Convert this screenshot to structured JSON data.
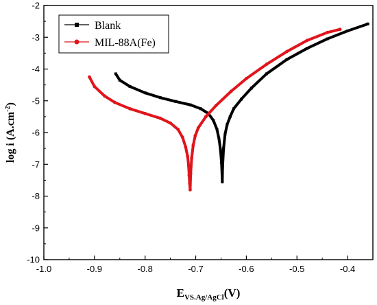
{
  "chart_data": {
    "type": "line",
    "title": "",
    "xlabel_main": "E",
    "xlabel_sub": "VS.Ag/AgCl",
    "xlabel_unit": "(V)",
    "ylabel_main": "log i (A.cm",
    "ylabel_sup": "-2",
    "ylabel_close": ")",
    "xlim": [
      -1.0,
      -0.35
    ],
    "ylim": [
      -10,
      -2
    ],
    "x_ticks": [
      -1.0,
      -0.9,
      -0.8,
      -0.7,
      -0.6,
      -0.5,
      -0.4
    ],
    "x_tick_labels": [
      "-1.0",
      "-0.9",
      "-0.8",
      "-0.7",
      "-0.6",
      "-0.5",
      "-0.4"
    ],
    "y_ticks": [
      -10,
      -9,
      -8,
      -7,
      -6,
      -5,
      -4,
      -3,
      -2
    ],
    "y_tick_labels": [
      "-10",
      "-9",
      "-8",
      "-7",
      "-6",
      "-5",
      "-4",
      "-3",
      "-2"
    ],
    "grid": false,
    "legend_position": "top-left",
    "series": [
      {
        "name": "Blank",
        "color": "#000000",
        "x": [
          -0.858,
          -0.85,
          -0.83,
          -0.8,
          -0.77,
          -0.74,
          -0.71,
          -0.69,
          -0.675,
          -0.665,
          -0.658,
          -0.654,
          -0.651,
          -0.649,
          -0.648,
          -0.6475,
          -0.647,
          -0.645,
          -0.642,
          -0.638,
          -0.632,
          -0.625,
          -0.61,
          -0.59,
          -0.56,
          -0.52,
          -0.48,
          -0.44,
          -0.4,
          -0.36
        ],
        "y": [
          -4.15,
          -4.35,
          -4.55,
          -4.75,
          -4.9,
          -5.02,
          -5.13,
          -5.25,
          -5.4,
          -5.62,
          -5.9,
          -6.2,
          -6.55,
          -6.95,
          -7.3,
          -7.55,
          -7.1,
          -6.5,
          -6.05,
          -5.75,
          -5.5,
          -5.25,
          -4.95,
          -4.6,
          -4.15,
          -3.7,
          -3.35,
          -3.05,
          -2.8,
          -2.58
        ]
      },
      {
        "name": "MIL-88A(Fe)",
        "color": "#e0151b",
        "x": [
          -0.91,
          -0.9,
          -0.88,
          -0.86,
          -0.83,
          -0.8,
          -0.77,
          -0.75,
          -0.735,
          -0.726,
          -0.72,
          -0.716,
          -0.714,
          -0.713,
          -0.712,
          -0.711,
          -0.71,
          -0.708,
          -0.705,
          -0.701,
          -0.695,
          -0.68,
          -0.66,
          -0.63,
          -0.6,
          -0.56,
          -0.52,
          -0.48,
          -0.44,
          -0.415
        ],
        "y": [
          -4.25,
          -4.55,
          -4.85,
          -5.05,
          -5.25,
          -5.4,
          -5.55,
          -5.7,
          -5.9,
          -6.15,
          -6.45,
          -6.75,
          -7.05,
          -7.35,
          -7.6,
          -7.8,
          -7.3,
          -6.8,
          -6.4,
          -6.1,
          -5.85,
          -5.5,
          -5.15,
          -4.7,
          -4.3,
          -3.85,
          -3.45,
          -3.1,
          -2.85,
          -2.75
        ]
      }
    ]
  }
}
